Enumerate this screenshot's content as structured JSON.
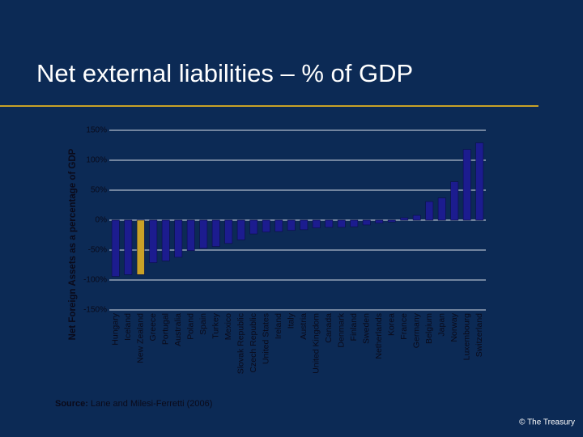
{
  "chart_data": {
    "type": "bar",
    "title": "Net external liabilities – % of GDP",
    "y_label": "Net Foreign Assets as a percentage of GDP",
    "categories": [
      "Hungary",
      "Iceland",
      "New Zealand",
      "Greece",
      "Portugal",
      "Australia",
      "Poland",
      "Spain",
      "Turkey",
      "Mexico",
      "Slovak Republic",
      "Czech Republic",
      "United States",
      "Ireland",
      "Italy",
      "Austria",
      "United Kingdom",
      "Canada",
      "Denmark",
      "Finland",
      "Sweden",
      "Netherlands",
      "Korea",
      "France",
      "Germany",
      "Belgium",
      "Japan",
      "Norway",
      "Luxembourg",
      "Switzerland"
    ],
    "values": [
      -94,
      -91,
      -91,
      -71,
      -68,
      -62,
      -51,
      -47,
      -44,
      -39,
      -33,
      -23,
      -20,
      -19,
      -17,
      -16,
      -13,
      -12,
      -12,
      -11,
      -8,
      -5,
      -3,
      4,
      8,
      31,
      37,
      64,
      118,
      129
    ],
    "colors": [
      "#1c1c8f",
      "#1c1c8f",
      "#c9a227",
      "#1c1c8f",
      "#1c1c8f",
      "#1c1c8f",
      "#1c1c8f",
      "#1c1c8f",
      "#1c1c8f",
      "#1c1c8f",
      "#1c1c8f",
      "#1c1c8f",
      "#1c1c8f",
      "#1c1c8f",
      "#1c1c8f",
      "#1c1c8f",
      "#1c1c8f",
      "#1c1c8f",
      "#1c1c8f",
      "#1c1c8f",
      "#1c1c8f",
      "#1c1c8f",
      "#1c1c8f",
      "#1c1c8f",
      "#1c1c8f",
      "#1c1c8f",
      "#1c1c8f",
      "#1c1c8f",
      "#1c1c8f",
      "#1c1c8f"
    ],
    "ylim": [
      -150,
      150
    ],
    "yticks": [
      {
        "value": -150,
        "label": "-150%"
      },
      {
        "value": -100,
        "label": "-100%"
      },
      {
        "value": -50,
        "label": "-50%"
      },
      {
        "value": 0,
        "label": "0%"
      },
      {
        "value": 50,
        "label": "50%"
      },
      {
        "value": 100,
        "label": "100%"
      },
      {
        "value": 150,
        "label": "150%"
      }
    ],
    "grid": true,
    "source_label": "Source:",
    "source": "Lane and Milesi-Ferretti (2006)",
    "footer": "© The Treasury"
  }
}
